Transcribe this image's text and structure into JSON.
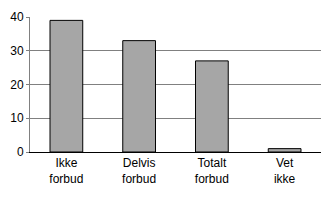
{
  "chart_data": {
    "type": "bar",
    "categories": [
      "Ikke forbud",
      "Delvis forbud",
      "Totalt forbud",
      "Vet ikke"
    ],
    "values": [
      39,
      33,
      27,
      1
    ],
    "color": "#a6a6a6",
    "ylim": [
      0,
      40
    ],
    "yticks": [
      0,
      10,
      20,
      30,
      40
    ],
    "grid": true
  }
}
